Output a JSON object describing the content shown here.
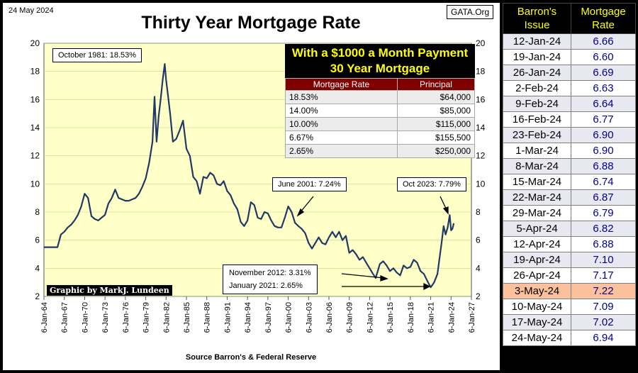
{
  "date": "24 May 2024",
  "site": "GATA.Org",
  "source": "Source Barron's & Federal Reserve",
  "credit": "Graphic by MarkJ. Lundeen",
  "colors": {
    "plot_bg": "#ffffc8",
    "line": "#1f3864",
    "highlight_row": "#fbc09c",
    "header_yellow": "#ffff00",
    "table_header_red": "#800000"
  },
  "annotations": {
    "peak": "October 1981:  18.53%",
    "jun2001": "June 2001:  7.24%",
    "oct2023": "Oct 2023:  7.79%",
    "nov2012": "November 2012:  3.31%",
    "jan2021": "January 2021:  2.65%"
  },
  "payment_table": {
    "title_line1": "With a $1000 a Month Payment",
    "title_line2": "30 Year Mortgage",
    "headers": [
      "Mortgage Rate",
      "Principal"
    ],
    "rows": [
      [
        "18.53%",
        "$64,000"
      ],
      [
        "14.00%",
        "$85,000"
      ],
      [
        "10.00%",
        "$115,000"
      ],
      [
        "6.67%",
        "$155,500"
      ],
      [
        "2.65%",
        "$250,000"
      ]
    ]
  },
  "rate_table": {
    "headers": [
      "Barron's Issue",
      "Mortgage Rate"
    ],
    "rows": [
      [
        "12-Jan-24",
        "6.66"
      ],
      [
        "19-Jan-24",
        "6.60"
      ],
      [
        "26-Jan-24",
        "6.69"
      ],
      [
        "2-Feb-24",
        "6.63"
      ],
      [
        "9-Feb-24",
        "6.64"
      ],
      [
        "16-Feb-24",
        "6.77"
      ],
      [
        "23-Feb-24",
        "6.90"
      ],
      [
        "1-Mar-24",
        "6.90"
      ],
      [
        "8-Mar-24",
        "6.88"
      ],
      [
        "15-Mar-24",
        "6.74"
      ],
      [
        "22-Mar-24",
        "6.87"
      ],
      [
        "29-Mar-24",
        "6.79"
      ],
      [
        "5-Apr-24",
        "6.82"
      ],
      [
        "12-Apr-24",
        "6.88"
      ],
      [
        "19-Apr-24",
        "7.10"
      ],
      [
        "26-Apr-24",
        "7.17"
      ],
      [
        "3-May-24",
        "7.22"
      ],
      [
        "10-May-24",
        "7.09"
      ],
      [
        "17-May-24",
        "7.02"
      ],
      [
        "24-May-24",
        "6.94"
      ]
    ],
    "highlight_index": 16
  },
  "chart_data": {
    "type": "line",
    "title": "Thirty Year Mortgage Rate",
    "xlabel": "",
    "ylabel": "",
    "ylim": [
      2,
      20
    ],
    "xlim": [
      1964,
      2027
    ],
    "yticks": [
      "2",
      "4",
      "6",
      "8",
      "10",
      "12",
      "14",
      "16",
      "18",
      "20"
    ],
    "xticks": [
      "6-Jan-64",
      "6-Jan-67",
      "6-Jan-70",
      "6-Jan-73",
      "6-Jan-76",
      "6-Jan-79",
      "6-Jan-82",
      "6-Jan-85",
      "6-Jan-88",
      "6-Jan-91",
      "6-Jan-94",
      "6-Jan-97",
      "6-Jan-00",
      "6-Jan-03",
      "6-Jan-06",
      "6-Jan-09",
      "6-Jan-12",
      "6-Jan-15",
      "6-Jan-18",
      "6-Jan-21",
      "6-Jan-24",
      "6-Jan-27"
    ],
    "series": [
      {
        "name": "30 Year Mortgage Rate",
        "x": [
          1964.0,
          1966.0,
          1966.5,
          1967.0,
          1967.5,
          1968.0,
          1968.5,
          1969.0,
          1969.5,
          1970.0,
          1970.5,
          1971.0,
          1971.5,
          1972.0,
          1972.5,
          1973.0,
          1973.5,
          1974.0,
          1974.5,
          1975.0,
          1975.5,
          1976.0,
          1976.5,
          1977.0,
          1977.5,
          1978.0,
          1978.5,
          1979.0,
          1979.5,
          1980.0,
          1980.3,
          1980.6,
          1980.9,
          1981.2,
          1981.5,
          1981.8,
          1982.0,
          1982.3,
          1982.6,
          1983.0,
          1983.5,
          1984.0,
          1984.5,
          1985.0,
          1985.5,
          1986.0,
          1986.5,
          1987.0,
          1987.5,
          1988.0,
          1988.5,
          1989.0,
          1989.5,
          1990.0,
          1990.5,
          1991.0,
          1991.5,
          1992.0,
          1992.5,
          1993.0,
          1993.5,
          1994.0,
          1994.5,
          1995.0,
          1995.5,
          1996.0,
          1996.5,
          1997.0,
          1997.5,
          1998.0,
          1998.5,
          1999.0,
          1999.5,
          2000.0,
          2000.5,
          2001.0,
          2001.5,
          2002.0,
          2002.5,
          2003.0,
          2003.5,
          2004.0,
          2004.5,
          2005.0,
          2005.5,
          2006.0,
          2006.5,
          2007.0,
          2007.5,
          2008.0,
          2008.5,
          2009.0,
          2009.5,
          2010.0,
          2010.5,
          2011.0,
          2011.5,
          2012.0,
          2012.5,
          2012.9,
          2013.5,
          2014.0,
          2014.5,
          2015.0,
          2015.5,
          2016.0,
          2016.5,
          2017.0,
          2017.5,
          2018.0,
          2018.5,
          2019.0,
          2019.5,
          2020.0,
          2020.5,
          2021.0,
          2021.5,
          2022.0,
          2022.3,
          2022.6,
          2022.9,
          2023.2,
          2023.5,
          2023.8,
          2024.0,
          2024.2,
          2024.4
        ],
        "values": [
          5.5,
          5.5,
          6.4,
          6.6,
          6.9,
          7.1,
          7.4,
          7.8,
          8.4,
          9.3,
          9.0,
          7.7,
          7.5,
          7.4,
          7.6,
          7.8,
          8.6,
          9.0,
          9.6,
          9.0,
          8.9,
          8.8,
          8.8,
          8.9,
          9.0,
          9.3,
          9.8,
          10.4,
          11.5,
          13.0,
          16.2,
          13.0,
          14.8,
          16.0,
          17.4,
          18.53,
          17.4,
          16.2,
          15.0,
          13.0,
          13.2,
          13.8,
          14.5,
          12.5,
          12.0,
          10.5,
          10.2,
          9.3,
          10.5,
          10.4,
          10.8,
          10.6,
          10.0,
          9.9,
          10.2,
          9.5,
          9.2,
          8.6,
          8.2,
          7.3,
          7.0,
          7.4,
          8.7,
          8.5,
          7.6,
          7.5,
          8.0,
          7.9,
          7.4,
          7.0,
          6.9,
          6.9,
          7.6,
          8.4,
          8.0,
          7.24,
          7.0,
          6.8,
          6.5,
          5.8,
          5.4,
          5.8,
          6.2,
          5.8,
          5.7,
          6.2,
          6.6,
          6.2,
          6.6,
          6.0,
          6.3,
          5.1,
          5.3,
          5.0,
          4.6,
          4.8,
          4.4,
          4.0,
          3.6,
          3.31,
          4.3,
          4.5,
          4.2,
          3.8,
          4.0,
          3.7,
          3.5,
          4.2,
          4.0,
          4.1,
          4.6,
          4.4,
          3.8,
          3.6,
          3.1,
          2.65,
          3.0,
          3.6,
          4.7,
          5.8,
          7.0,
          6.4,
          6.9,
          7.79,
          6.7,
          6.8,
          7.2
        ]
      }
    ]
  }
}
